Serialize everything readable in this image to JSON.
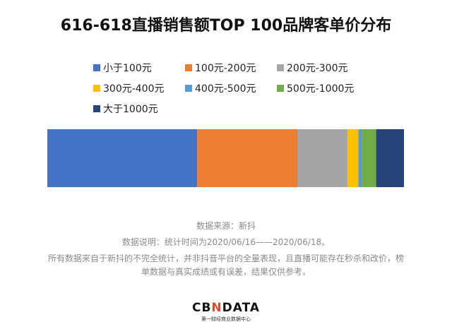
{
  "chart_data": {
    "type": "bar",
    "orientation": "horizontal",
    "stacked": "100%",
    "title": "616-618直播销售额TOP 100品牌客单价分布",
    "categories": [
      ""
    ],
    "series": [
      {
        "name": "小于100元",
        "values": [
          42.0
        ],
        "color": "#4472C4"
      },
      {
        "name": "100元-200元",
        "values": [
          28.1
        ],
        "color": "#ED7D31"
      },
      {
        "name": "200元-300元",
        "values": [
          14.1
        ],
        "color": "#A5A5A5"
      },
      {
        "name": "300元-400元",
        "values": [
          3.0
        ],
        "color": "#FFC000"
      },
      {
        "name": "400元-500元",
        "values": [
          1.0
        ],
        "color": "#5B9BD5"
      },
      {
        "name": "500元-1000元",
        "values": [
          4.0
        ],
        "color": "#70AD47"
      },
      {
        "name": "大于1000元",
        "values": [
          7.8
        ],
        "color": "#264478"
      }
    ],
    "xlim": [
      0,
      100
    ],
    "grid": false,
    "legend": "top"
  },
  "notes": {
    "source": "数据来源：新抖",
    "explain": "数据说明：统计时间为2020/06/16——2020/06/18。",
    "disclaimer1": "所有数据来自于新抖的不完全统计，并非抖音平台的全量表现，且直播可能存在秒杀和改价，榜",
    "disclaimer2": "单数据与真实成绩或有误差，结果仅供参考。"
  },
  "logo": {
    "text_a": "CB",
    "text_x": "N",
    "text_b": "DATA",
    "tagline": "第一财经商业数据中心"
  }
}
